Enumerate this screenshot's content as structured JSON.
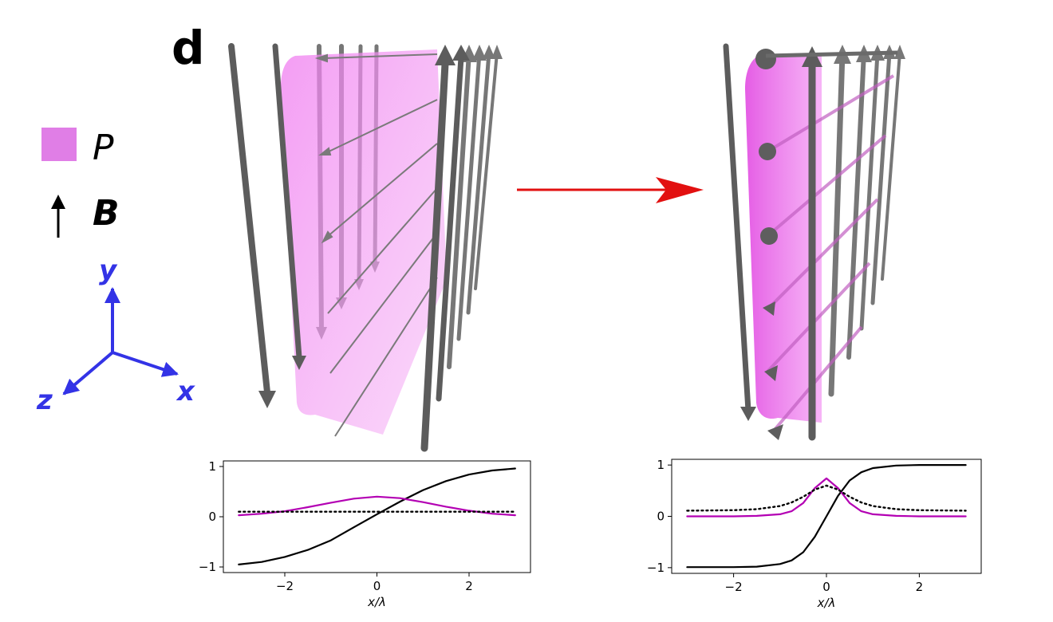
{
  "figure": {
    "panel_label": "d",
    "legend": {
      "polarization_symbol": "P",
      "field_symbol": "B",
      "polarization_color": "#e07ee6"
    },
    "axes_triad": {
      "labels": [
        "y",
        "x",
        "z"
      ],
      "color": "#3333e6"
    },
    "transition_arrow_color": "#e21010",
    "field_line_color": "#666666",
    "sheet_color": "#ee66ee"
  },
  "chart_data": [
    {
      "type": "line",
      "title": "",
      "xlabel": "x/λ",
      "ylabel": "",
      "xlim": [
        -3.0,
        3.0
      ],
      "ylim": [
        -1.0,
        1.0
      ],
      "xticks": [
        -2,
        0,
        2
      ],
      "xtick_labels": [
        "−2",
        "0",
        "2"
      ],
      "yticks": [
        1,
        0,
        -1
      ],
      "ytick_labels": [
        "1",
        "0",
        "−1"
      ],
      "x": [
        -3.0,
        -2.5,
        -2.0,
        -1.5,
        -1.0,
        -0.5,
        0.0,
        0.5,
        1.0,
        1.5,
        2.0,
        2.5,
        3.0
      ],
      "series": [
        {
          "color": "#000000",
          "style": "solid",
          "values": [
            -0.95,
            -0.9,
            -0.8,
            -0.66,
            -0.47,
            -0.21,
            0.05,
            0.3,
            0.53,
            0.71,
            0.84,
            0.92,
            0.96
          ]
        },
        {
          "color": "#b300b3",
          "style": "solid",
          "values": [
            0.03,
            0.06,
            0.11,
            0.19,
            0.28,
            0.36,
            0.4,
            0.37,
            0.29,
            0.2,
            0.12,
            0.06,
            0.03
          ]
        },
        {
          "color": "#000000",
          "style": "dotted",
          "values": [
            0.1,
            0.1,
            0.1,
            0.1,
            0.1,
            0.1,
            0.1,
            0.1,
            0.1,
            0.1,
            0.1,
            0.1,
            0.1
          ]
        }
      ]
    },
    {
      "type": "line",
      "title": "",
      "xlabel": "x/λ",
      "ylabel": "",
      "xlim": [
        -3.0,
        3.0
      ],
      "ylim": [
        -1.0,
        1.0
      ],
      "xticks": [
        -2,
        0,
        2
      ],
      "xtick_labels": [
        "−2",
        "0",
        "2"
      ],
      "yticks": [
        1,
        0,
        -1
      ],
      "ytick_labels": [
        "1",
        "0",
        "−1"
      ],
      "x": [
        -3.0,
        -2.0,
        -1.5,
        -1.0,
        -0.75,
        -0.5,
        -0.25,
        0.0,
        0.25,
        0.5,
        0.75,
        1.0,
        1.5,
        2.0,
        3.0
      ],
      "series": [
        {
          "color": "#000000",
          "style": "solid",
          "values": [
            -0.99,
            -0.99,
            -0.98,
            -0.93,
            -0.86,
            -0.7,
            -0.4,
            0.0,
            0.4,
            0.7,
            0.86,
            0.94,
            0.99,
            1.0,
            1.0
          ]
        },
        {
          "color": "#b300b3",
          "style": "solid",
          "values": [
            0.0,
            0.0,
            0.01,
            0.04,
            0.1,
            0.26,
            0.55,
            0.74,
            0.55,
            0.26,
            0.1,
            0.04,
            0.01,
            0.0,
            0.0
          ]
        },
        {
          "color": "#000000",
          "style": "dotted",
          "values": [
            0.11,
            0.12,
            0.14,
            0.2,
            0.27,
            0.38,
            0.52,
            0.6,
            0.52,
            0.38,
            0.27,
            0.2,
            0.14,
            0.12,
            0.11
          ]
        }
      ]
    }
  ]
}
